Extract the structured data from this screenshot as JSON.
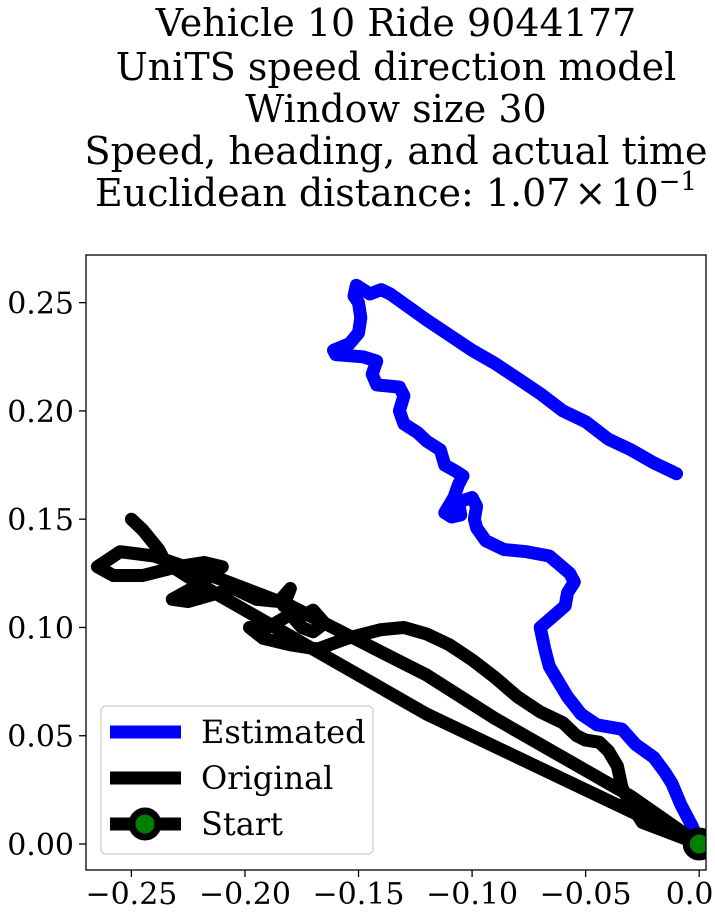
{
  "chart_data": {
    "type": "line",
    "title_lines": [
      "Vehicle 10 Ride 9044177",
      "UniTS speed direction model",
      "Window size 30",
      "Speed, heading, and actual time"
    ],
    "title_distance_prefix": "Euclidean distance: ",
    "title_distance_mantissa": "1.07",
    "title_distance_times": "×",
    "title_distance_base": "10",
    "title_distance_exponent": "−1",
    "xlabel": "",
    "ylabel": "",
    "xlim": [
      -0.27,
      0.003
    ],
    "ylim": [
      -0.012,
      0.272
    ],
    "xticks": [
      -0.25,
      -0.2,
      -0.15,
      -0.1,
      -0.05,
      0.0
    ],
    "xtick_labels": [
      "−0.25",
      "−0.20",
      "−0.15",
      "−0.10",
      "−0.05",
      "0.00"
    ],
    "yticks": [
      0.0,
      0.05,
      0.1,
      0.15,
      0.2,
      0.25
    ],
    "ytick_labels": [
      "0.00",
      "0.05",
      "0.10",
      "0.15",
      "0.20",
      "0.25"
    ],
    "grid": false,
    "legend_position": "lower-left",
    "series": [
      {
        "name": "Estimated",
        "color": "#0000ff",
        "points": [
          [
            0.0,
            0.0
          ],
          [
            -0.003,
            0.008
          ],
          [
            -0.008,
            0.018
          ],
          [
            -0.012,
            0.028
          ],
          [
            -0.015,
            0.033
          ],
          [
            -0.02,
            0.04
          ],
          [
            -0.028,
            0.046
          ],
          [
            -0.034,
            0.053
          ],
          [
            -0.045,
            0.055
          ],
          [
            -0.052,
            0.06
          ],
          [
            -0.058,
            0.068
          ],
          [
            -0.062,
            0.075
          ],
          [
            -0.066,
            0.082
          ],
          [
            -0.068,
            0.09
          ],
          [
            -0.07,
            0.1
          ],
          [
            -0.059,
            0.11
          ],
          [
            -0.058,
            0.116
          ],
          [
            -0.055,
            0.121
          ],
          [
            -0.057,
            0.125
          ],
          [
            -0.066,
            0.133
          ],
          [
            -0.076,
            0.135
          ],
          [
            -0.086,
            0.136
          ],
          [
            -0.094,
            0.14
          ],
          [
            -0.098,
            0.146
          ],
          [
            -0.099,
            0.15
          ],
          [
            -0.098,
            0.156
          ],
          [
            -0.1,
            0.16
          ],
          [
            -0.106,
            0.158
          ],
          [
            -0.105,
            0.152
          ],
          [
            -0.109,
            0.151
          ],
          [
            -0.112,
            0.153
          ],
          [
            -0.108,
            0.16
          ],
          [
            -0.106,
            0.166
          ],
          [
            -0.104,
            0.17
          ],
          [
            -0.107,
            0.172
          ],
          [
            -0.112,
            0.175
          ],
          [
            -0.114,
            0.182
          ],
          [
            -0.12,
            0.186
          ],
          [
            -0.124,
            0.19
          ],
          [
            -0.13,
            0.194
          ],
          [
            -0.132,
            0.2
          ],
          [
            -0.13,
            0.207
          ],
          [
            -0.132,
            0.211
          ],
          [
            -0.142,
            0.212
          ],
          [
            -0.144,
            0.217
          ],
          [
            -0.142,
            0.223
          ],
          [
            -0.148,
            0.225
          ],
          [
            -0.16,
            0.226
          ],
          [
            -0.161,
            0.228
          ],
          [
            -0.154,
            0.231
          ],
          [
            -0.15,
            0.236
          ],
          [
            -0.149,
            0.243
          ],
          [
            -0.15,
            0.25
          ],
          [
            -0.152,
            0.253
          ],
          [
            -0.151,
            0.258
          ],
          [
            -0.148,
            0.256
          ],
          [
            -0.145,
            0.254
          ],
          [
            -0.14,
            0.256
          ],
          [
            -0.136,
            0.254
          ],
          [
            -0.128,
            0.248
          ],
          [
            -0.12,
            0.242
          ],
          [
            -0.11,
            0.235
          ],
          [
            -0.1,
            0.228
          ],
          [
            -0.09,
            0.222
          ],
          [
            -0.08,
            0.215
          ],
          [
            -0.07,
            0.208
          ],
          [
            -0.06,
            0.2
          ],
          [
            -0.05,
            0.195
          ],
          [
            -0.04,
            0.187
          ],
          [
            -0.03,
            0.182
          ],
          [
            -0.02,
            0.176
          ],
          [
            -0.012,
            0.172
          ],
          [
            -0.01,
            0.171
          ]
        ]
      },
      {
        "name": "Original",
        "color": "#000000",
        "points": [
          [
            0.0,
            0.0
          ],
          [
            -0.03,
            0.022
          ],
          [
            -0.06,
            0.04
          ],
          [
            -0.09,
            0.058
          ],
          [
            -0.12,
            0.078
          ],
          [
            -0.15,
            0.094
          ],
          [
            -0.18,
            0.11
          ],
          [
            -0.21,
            0.122
          ],
          [
            -0.24,
            0.133
          ],
          [
            -0.255,
            0.135
          ],
          [
            -0.265,
            0.128
          ],
          [
            -0.258,
            0.124
          ],
          [
            -0.245,
            0.124
          ],
          [
            -0.23,
            0.128
          ],
          [
            -0.218,
            0.13
          ],
          [
            -0.21,
            0.128
          ],
          [
            -0.22,
            0.12
          ],
          [
            -0.232,
            0.113
          ],
          [
            -0.225,
            0.112
          ],
          [
            -0.205,
            0.118
          ],
          [
            -0.195,
            0.113
          ],
          [
            -0.185,
            0.112
          ],
          [
            -0.18,
            0.118
          ],
          [
            -0.183,
            0.11
          ],
          [
            -0.175,
            0.105
          ],
          [
            -0.17,
            0.108
          ],
          [
            -0.165,
            0.102
          ],
          [
            -0.17,
            0.098
          ],
          [
            -0.175,
            0.1
          ],
          [
            -0.18,
            0.106
          ],
          [
            -0.19,
            0.1
          ],
          [
            -0.198,
            0.1
          ],
          [
            -0.192,
            0.095
          ],
          [
            -0.18,
            0.092
          ],
          [
            -0.168,
            0.09
          ],
          [
            -0.155,
            0.095
          ],
          [
            -0.14,
            0.099
          ],
          [
            -0.13,
            0.1
          ],
          [
            -0.12,
            0.097
          ],
          [
            -0.11,
            0.092
          ],
          [
            -0.1,
            0.085
          ],
          [
            -0.09,
            0.077
          ],
          [
            -0.08,
            0.068
          ],
          [
            -0.07,
            0.061
          ],
          [
            -0.06,
            0.056
          ],
          [
            -0.054,
            0.05
          ],
          [
            -0.05,
            0.048
          ],
          [
            -0.044,
            0.047
          ],
          [
            -0.04,
            0.043
          ],
          [
            -0.036,
            0.036
          ],
          [
            -0.034,
            0.026
          ],
          [
            -0.03,
            0.018
          ],
          [
            -0.025,
            0.01
          ],
          [
            -0.015,
            0.006
          ],
          [
            -0.005,
            0.002
          ],
          [
            0.0,
            0.0
          ],
          [
            -0.06,
            0.03
          ],
          [
            -0.12,
            0.06
          ],
          [
            -0.17,
            0.09
          ],
          [
            -0.2,
            0.108
          ],
          [
            -0.22,
            0.12
          ],
          [
            -0.235,
            0.13
          ],
          [
            -0.238,
            0.136
          ],
          [
            -0.245,
            0.145
          ],
          [
            -0.25,
            0.15
          ]
        ]
      }
    ],
    "start": {
      "name": "Start",
      "point": [
        0.0,
        0.0
      ],
      "marker_fill": "#008000",
      "marker_edge": "#000000"
    }
  }
}
